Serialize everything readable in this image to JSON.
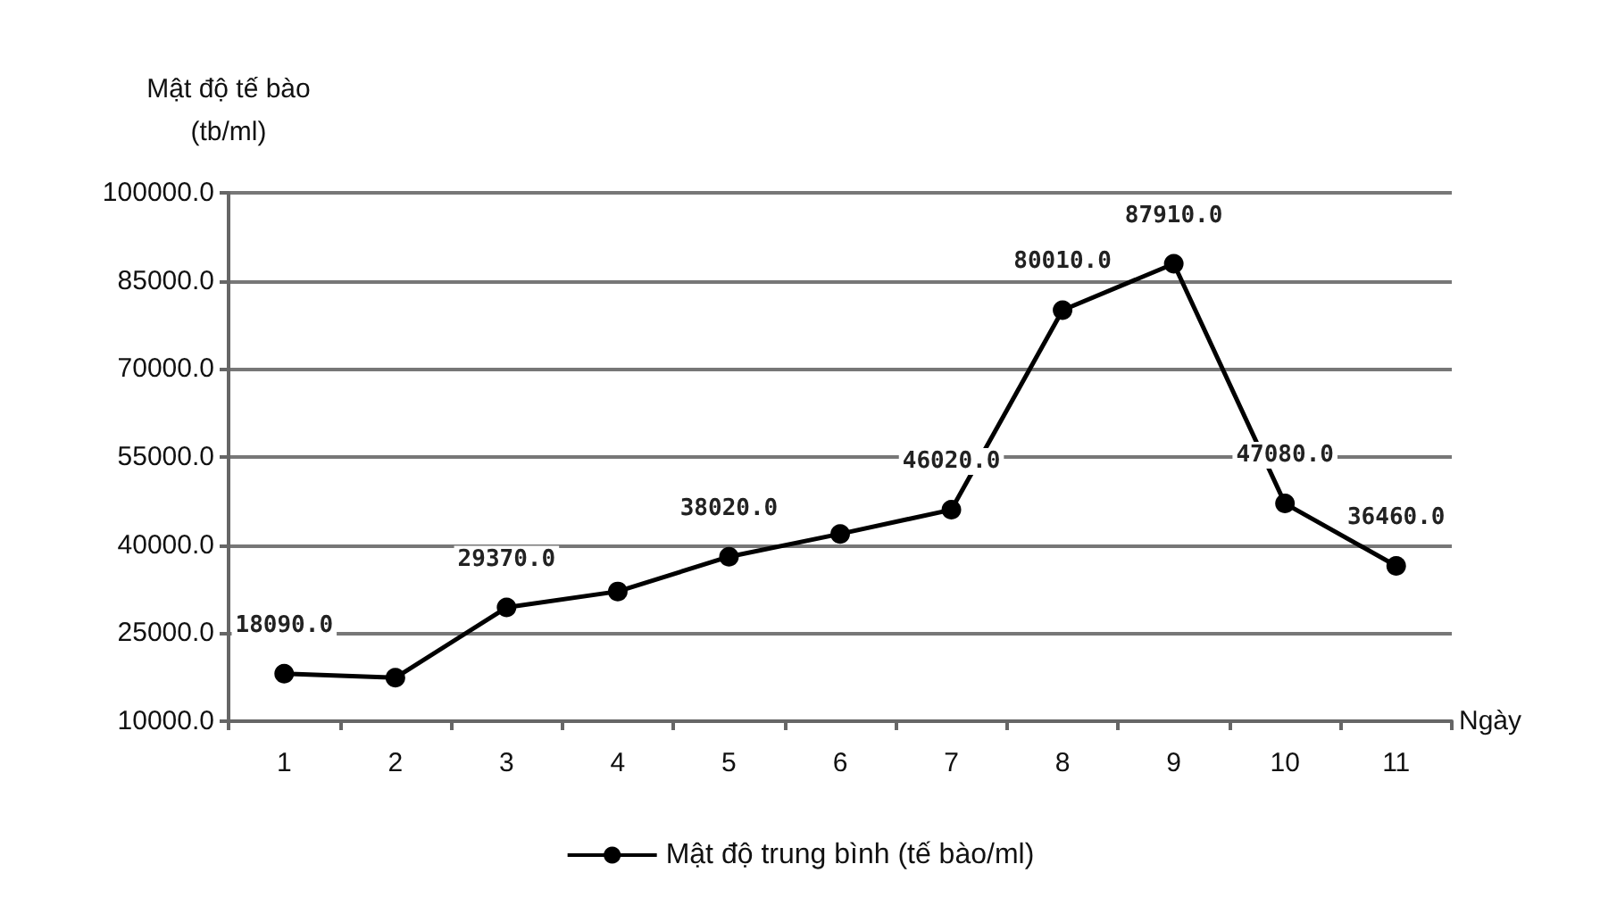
{
  "chart_data": {
    "type": "line",
    "ylabel": "Mật độ tế bào\n(tb/ml)",
    "xlabel": "Ngày",
    "categories": [
      "1",
      "2",
      "3",
      "4",
      "5",
      "6",
      "7",
      "8",
      "9",
      "10",
      "11"
    ],
    "series": [
      {
        "name": "Mật độ trung bình (tế bào/ml)",
        "color": "#000000",
        "values": [
          18090,
          17400,
          29370,
          32100,
          38020,
          41900,
          46020,
          80010,
          87910,
          47080,
          36460
        ],
        "value_labels": [
          "18090.0",
          null,
          "29370.0",
          null,
          "38020.0",
          null,
          "46020.0",
          "80010.0",
          "87910.0",
          "47080.0",
          "36460.0"
        ]
      }
    ],
    "ylim": [
      10000,
      100000
    ],
    "yticks": [
      {
        "value": 10000,
        "label": "10000.0"
      },
      {
        "value": 25000,
        "label": "25000.0"
      },
      {
        "value": 40000,
        "label": "40000.0"
      },
      {
        "value": 55000,
        "label": "55000.0"
      },
      {
        "value": 70000,
        "label": "70000.0"
      },
      {
        "value": 85000,
        "label": "85000.0"
      },
      {
        "value": 100000,
        "label": "100000.0"
      }
    ],
    "grid": "y",
    "legend": "bottom",
    "marker": "circle",
    "line_style": "solid"
  }
}
